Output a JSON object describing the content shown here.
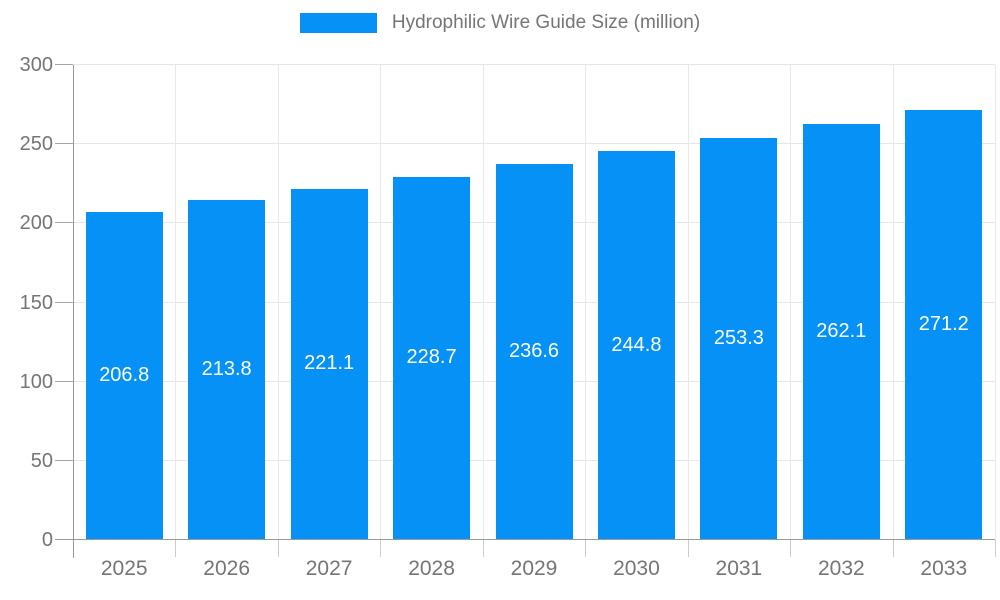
{
  "legend": {
    "label": "Hydrophilic Wire Guide Size (million)",
    "swatch_color": "#0591f5"
  },
  "chart_data": {
    "type": "bar",
    "title": "Hydrophilic Wire Guide Size (million)",
    "categories": [
      "2025",
      "2026",
      "2027",
      "2028",
      "2029",
      "2030",
      "2031",
      "2032",
      "2033"
    ],
    "values": [
      206.8,
      213.8,
      221.1,
      228.7,
      236.6,
      244.8,
      253.3,
      262.1,
      271.2
    ],
    "xlabel": "",
    "ylabel": "",
    "ylim": [
      0,
      300
    ],
    "yticks": [
      0,
      50,
      100,
      150,
      200,
      250,
      300
    ],
    "grid": true,
    "legend_position": "top",
    "bar_color": "#0591f5",
    "bar_label_color": "#ffffff",
    "axis_text_color": "#757575"
  }
}
